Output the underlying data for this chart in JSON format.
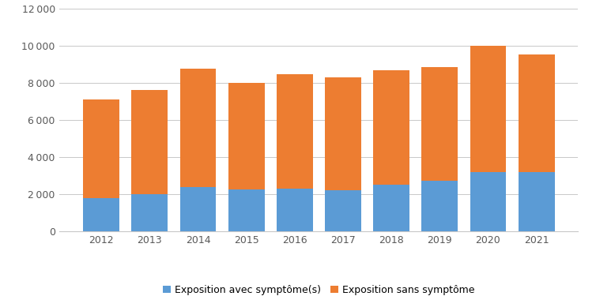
{
  "years": [
    2012,
    2013,
    2014,
    2015,
    2016,
    2017,
    2018,
    2019,
    2020,
    2021
  ],
  "avec_symptomes": [
    1750,
    2000,
    2350,
    2250,
    2300,
    2200,
    2500,
    2700,
    3200,
    3200
  ],
  "sans_symptome": [
    5350,
    5600,
    6400,
    5750,
    6150,
    6100,
    6200,
    6150,
    6800,
    6350
  ],
  "color_avec": "#5B9BD5",
  "color_sans": "#ED7D31",
  "label_avec": "Exposition avec symptôme(s)",
  "label_sans": "Exposition sans symptôme",
  "ylim": [
    0,
    12000
  ],
  "yticks": [
    0,
    2000,
    4000,
    6000,
    8000,
    10000,
    12000
  ],
  "bar_width": 0.75,
  "background_color": "#ffffff",
  "grid_color": "#c8c8c8",
  "tick_color": "#595959",
  "spine_color": "#c8c8c8"
}
